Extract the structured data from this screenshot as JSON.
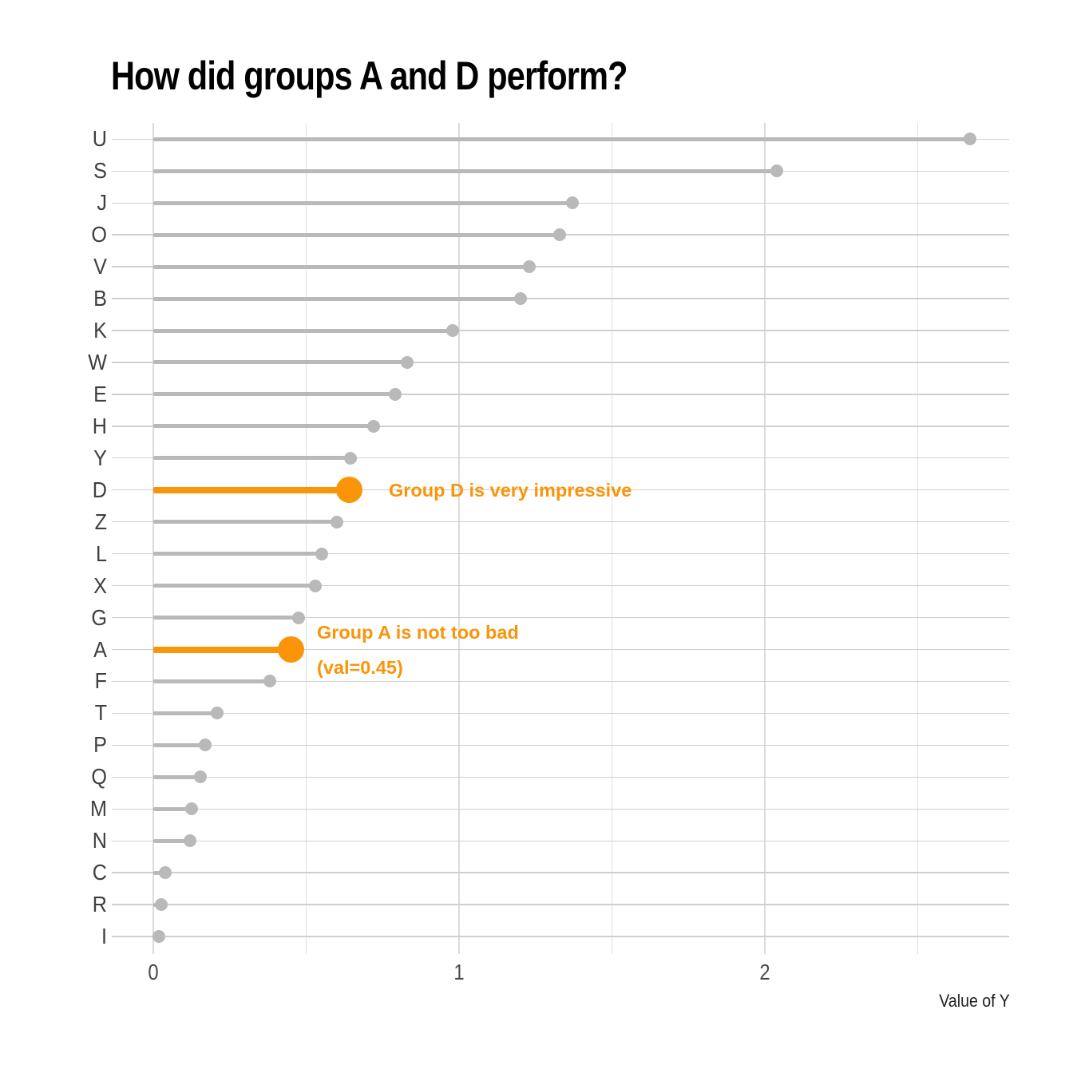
{
  "title": "How did groups A and D perform?",
  "chart_data": {
    "type": "bar",
    "variant": "lollipop",
    "orientation": "horizontal",
    "title": "How did groups A and D perform?",
    "xlabel": "Value of Y",
    "ylabel": "",
    "categories": [
      "U",
      "S",
      "J",
      "O",
      "V",
      "B",
      "K",
      "W",
      "E",
      "H",
      "Y",
      "D",
      "Z",
      "L",
      "X",
      "G",
      "A",
      "F",
      "T",
      "P",
      "Q",
      "M",
      "N",
      "C",
      "R",
      "I"
    ],
    "values": [
      2.67,
      2.04,
      1.37,
      1.33,
      1.23,
      1.2,
      0.98,
      0.83,
      0.79,
      0.72,
      0.645,
      0.64,
      0.6,
      0.55,
      0.53,
      0.475,
      0.45,
      0.38,
      0.21,
      0.17,
      0.155,
      0.125,
      0.12,
      0.04,
      0.025,
      0.018
    ],
    "highlighted_categories": [
      "D",
      "A"
    ],
    "x_ticks": [
      "0",
      "1",
      "2"
    ],
    "x_gridlines": [
      0,
      0.5,
      1,
      1.5,
      2,
      2.5
    ],
    "xlim": [
      -0.14,
      2.8
    ],
    "grid": "on",
    "legend": "none",
    "colors": {
      "default_series": "#b9b9b9",
      "highlight": "#fa9408",
      "gridline": "#d0d0d0",
      "axis_text": "#3f3f3f",
      "title_text": "#000000"
    },
    "annotations": [
      {
        "target": "D",
        "text": "Group D is very impressive"
      },
      {
        "target": "A",
        "text": "Group A is not too bad\n(val=0.45)"
      }
    ]
  }
}
